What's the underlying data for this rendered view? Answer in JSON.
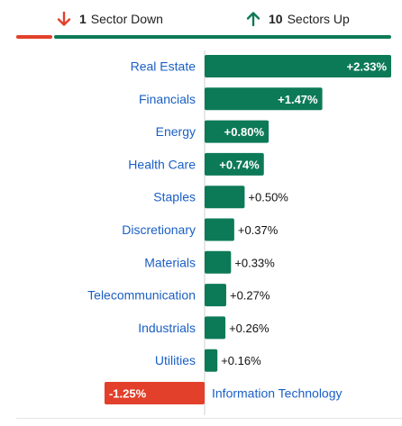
{
  "summary": {
    "down_count": "1",
    "down_label": "Sector Down",
    "up_count": "10",
    "up_label": "Sectors Up"
  },
  "colors": {
    "up": "#0d7a57",
    "down": "#e2402b",
    "label": "#1a5fc4",
    "axis": "#cfcfcf",
    "value_outside": "#111111",
    "value_inside": "#ffffff"
  },
  "chart_data": {
    "type": "bar",
    "orientation": "horizontal",
    "categories": [
      "Real Estate",
      "Financials",
      "Energy",
      "Health Care",
      "Staples",
      "Discretionary",
      "Materials",
      "Telecommunication",
      "Industrials",
      "Utilities",
      "Information Technology"
    ],
    "values": [
      2.33,
      1.47,
      0.8,
      0.74,
      0.5,
      0.37,
      0.33,
      0.27,
      0.26,
      0.16,
      -1.25
    ],
    "value_labels": [
      "+2.33%",
      "+1.47%",
      "+0.80%",
      "+0.74%",
      "+0.50%",
      "+0.37%",
      "+0.33%",
      "+0.27%",
      "+0.26%",
      "+0.16%",
      "-1.25%"
    ],
    "xlim": [
      -2.0,
      2.33
    ],
    "title": "",
    "xlabel": "",
    "ylabel": "",
    "grid": false,
    "legend": "none"
  }
}
